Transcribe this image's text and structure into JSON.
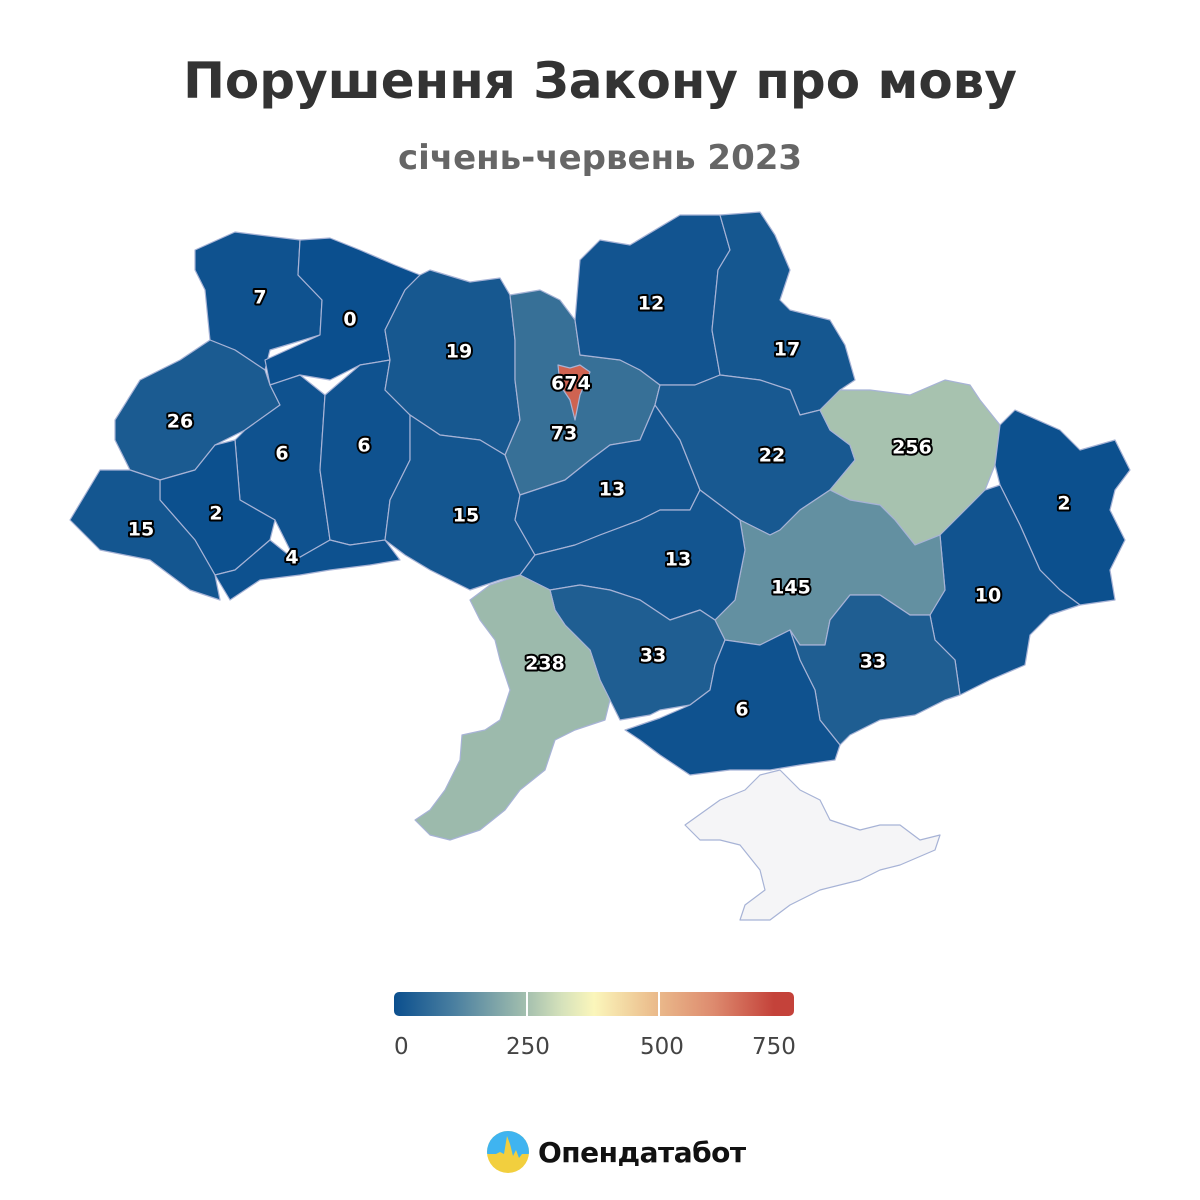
{
  "title": "Порушення Закону про мову",
  "subtitle": "січень-червень 2023",
  "chart_data": {
    "type": "choropleth",
    "value_range": [
      0,
      750
    ],
    "color_scale": {
      "0": "#0b4f8e",
      "250": "#a3bfae",
      "375": "#fbf6bb",
      "500": "#e8b085",
      "750": "#c4423a"
    },
    "no_data_color": "#f5f5f7",
    "legend": {
      "ticks": [
        "0",
        "250",
        "500",
        "750"
      ],
      "placement": "bottom"
    },
    "regions": [
      {
        "value": 7
      },
      {
        "value": 0
      },
      {
        "value": 26
      },
      {
        "value": 6
      },
      {
        "value": 6
      },
      {
        "value": 2
      },
      {
        "value": 15
      },
      {
        "value": 4
      },
      {
        "value": 19
      },
      {
        "value": 73
      },
      {
        "value": 15
      },
      {
        "value": 13
      },
      {
        "value": 12
      },
      {
        "value": 17
      },
      {
        "value": 22
      },
      {
        "value": 256
      },
      {
        "value": 2
      },
      {
        "value": 10
      },
      {
        "value": 145
      },
      {
        "value": 13
      },
      {
        "value": 33
      },
      {
        "value": 33
      },
      {
        "value": 6
      },
      {
        "value": 238
      },
      {
        "value": null
      },
      {
        "value": 674
      }
    ]
  },
  "brand": {
    "name": "Опендатабот"
  }
}
